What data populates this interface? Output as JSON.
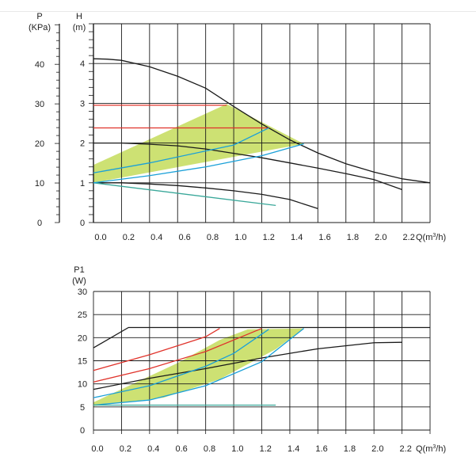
{
  "colors": {
    "zone": "#c4dc5a",
    "black": "#1a1a1a",
    "red": "#e0332b",
    "blue": "#1aa0d8",
    "teal": "#3aa89a"
  },
  "chart_data": [
    {
      "type": "line",
      "x_axis": {
        "label": "Q(m³/h)",
        "label_main": "Q(m",
        "label_sup": "3",
        "label_end": "/h)",
        "range": [
          0,
          2.4
        ],
        "ticks": [
          "0.0",
          "0.2",
          "0.4",
          "0.6",
          "0.8",
          "1.0",
          "1.2",
          "1.4",
          "1.6",
          "1.8",
          "2.0",
          "2.2"
        ]
      },
      "y_axis_left": {
        "label_top": "P",
        "label_unit": "(KPa)",
        "range": [
          0,
          50
        ],
        "ticks": [
          "0",
          "10",
          "20",
          "30",
          "40"
        ]
      },
      "y_axis_right": {
        "label_top": "H",
        "label_unit": "(m)",
        "range": [
          0,
          5
        ],
        "ticks": [
          "0",
          "1",
          "2",
          "3",
          "4"
        ]
      },
      "grid": true,
      "zone": {
        "color": "#c4dc5a",
        "points": [
          [
            0,
            1.45
          ],
          [
            0.95,
            2.98
          ],
          [
            1.5,
            1.98
          ],
          [
            0,
            1.0
          ]
        ]
      },
      "series": [
        {
          "color": "#1a1a1a",
          "points": [
            [
              0,
              4.12
            ],
            [
              0.1,
              4.11
            ],
            [
              0.2,
              4.08
            ],
            [
              0.4,
              3.92
            ],
            [
              0.6,
              3.68
            ],
            [
              0.8,
              3.38
            ],
            [
              1.0,
              2.92
            ],
            [
              1.2,
              2.48
            ],
            [
              1.4,
              2.08
            ],
            [
              1.6,
              1.75
            ],
            [
              1.8,
              1.48
            ],
            [
              2.0,
              1.27
            ],
            [
              2.2,
              1.1
            ],
            [
              2.4,
              1.0
            ]
          ]
        },
        {
          "color": "#1a1a1a",
          "points": [
            [
              0,
              2.0
            ],
            [
              0.2,
              2.0
            ],
            [
              0.4,
              1.97
            ],
            [
              0.6,
              1.93
            ],
            [
              0.8,
              1.85
            ],
            [
              1.0,
              1.74
            ],
            [
              1.2,
              1.63
            ],
            [
              1.4,
              1.5
            ],
            [
              1.6,
              1.37
            ],
            [
              1.8,
              1.23
            ],
            [
              2.0,
              1.08
            ],
            [
              2.2,
              0.83
            ]
          ]
        },
        {
          "color": "#1a1a1a",
          "points": [
            [
              0,
              1.0
            ],
            [
              0.2,
              1.0
            ],
            [
              0.4,
              0.97
            ],
            [
              0.6,
              0.93
            ],
            [
              0.8,
              0.87
            ],
            [
              1.0,
              0.8
            ],
            [
              1.2,
              0.71
            ],
            [
              1.4,
              0.58
            ],
            [
              1.6,
              0.35
            ]
          ]
        },
        {
          "color": "#3aa89a",
          "points": [
            [
              0,
              1.0
            ],
            [
              1.3,
              0.43
            ]
          ]
        },
        {
          "color": "#e0332b",
          "points": [
            [
              0,
              2.95
            ],
            [
              0.95,
              2.95
            ]
          ]
        },
        {
          "color": "#e0332b",
          "points": [
            [
              0,
              2.38
            ],
            [
              1.25,
              2.38
            ]
          ]
        },
        {
          "color": "#1aa0d8",
          "points": [
            [
              0,
              1.25
            ],
            [
              0.4,
              1.5
            ],
            [
              0.8,
              1.8
            ],
            [
              1.0,
              1.95
            ],
            [
              1.25,
              2.38
            ]
          ]
        },
        {
          "color": "#1aa0d8",
          "points": [
            [
              0,
              1.0
            ],
            [
              0.4,
              1.18
            ],
            [
              0.8,
              1.4
            ],
            [
              1.2,
              1.68
            ],
            [
              1.5,
              1.98
            ]
          ]
        }
      ]
    },
    {
      "type": "line",
      "x_axis": {
        "label": "Q(m³/h)",
        "label_main": "Q(m",
        "label_sup": "3",
        "label_end": "/h)",
        "range": [
          0,
          2.4
        ],
        "ticks": [
          "0.0",
          "0.2",
          "0.4",
          "0.6",
          "0.8",
          "1.0",
          "1.2",
          "1.4",
          "1.6",
          "1.8",
          "2.0",
          "2.2"
        ]
      },
      "y_axis_left": {
        "label_top": "P1",
        "label_unit": "(W)",
        "range": [
          0,
          30
        ],
        "ticks": [
          "0",
          "5",
          "10",
          "15",
          "20",
          "25",
          "30"
        ]
      },
      "grid": true,
      "zone": {
        "color": "#c4dc5a",
        "points": [
          [
            0,
            6.3
          ],
          [
            0.65,
            17.0
          ],
          [
            0.9,
            21.8
          ],
          [
            1.5,
            21.8
          ],
          [
            1.22,
            21.8
          ],
          [
            0.8,
            15.0
          ],
          [
            0.4,
            10.0
          ],
          [
            0,
            6.8
          ]
        ]
      },
      "zone2": {
        "points": [
          [
            0,
            6.0
          ],
          [
            0.6,
            14.5
          ],
          [
            0.9,
            19.5
          ],
          [
            1.1,
            21.8
          ],
          [
            1.5,
            22.0
          ],
          [
            1.3,
            17.5
          ],
          [
            0.9,
            11.0
          ],
          [
            0.5,
            7.0
          ],
          [
            0,
            5.2
          ]
        ]
      },
      "series": [
        {
          "color": "#1a1a1a",
          "points": [
            [
              0,
              17.8
            ],
            [
              0.25,
              22.2
            ],
            [
              2.4,
              22.2
            ]
          ]
        },
        {
          "color": "#1a1a1a",
          "points": [
            [
              0,
              8.8
            ],
            [
              0.4,
              11.2
            ],
            [
              0.8,
              13.3
            ],
            [
              1.2,
              15.6
            ],
            [
              1.6,
              17.6
            ],
            [
              2.0,
              18.9
            ],
            [
              2.2,
              19.0
            ]
          ]
        },
        {
          "color": "#e0332b",
          "points": [
            [
              0,
              12.9
            ],
            [
              0.4,
              16.3
            ],
            [
              0.8,
              20.2
            ],
            [
              0.9,
              22.0
            ]
          ]
        },
        {
          "color": "#e0332b",
          "points": [
            [
              0,
              10.4
            ],
            [
              0.4,
              13.3
            ],
            [
              0.8,
              17.0
            ],
            [
              1.2,
              22.0
            ]
          ]
        },
        {
          "color": "#1aa0d8",
          "points": [
            [
              0,
              7.0
            ],
            [
              0.4,
              9.6
            ],
            [
              0.8,
              13.8
            ],
            [
              1.0,
              16.6
            ],
            [
              1.25,
              21.8
            ]
          ]
        },
        {
          "color": "#1aa0d8",
          "points": [
            [
              0,
              5.4
            ],
            [
              0.4,
              6.5
            ],
            [
              0.8,
              9.6
            ],
            [
              1.2,
              14.8
            ],
            [
              1.5,
              22.0
            ]
          ]
        },
        {
          "color": "#3aa89a",
          "points": [
            [
              0,
              5.4
            ],
            [
              1.3,
              5.4
            ]
          ]
        }
      ]
    }
  ]
}
